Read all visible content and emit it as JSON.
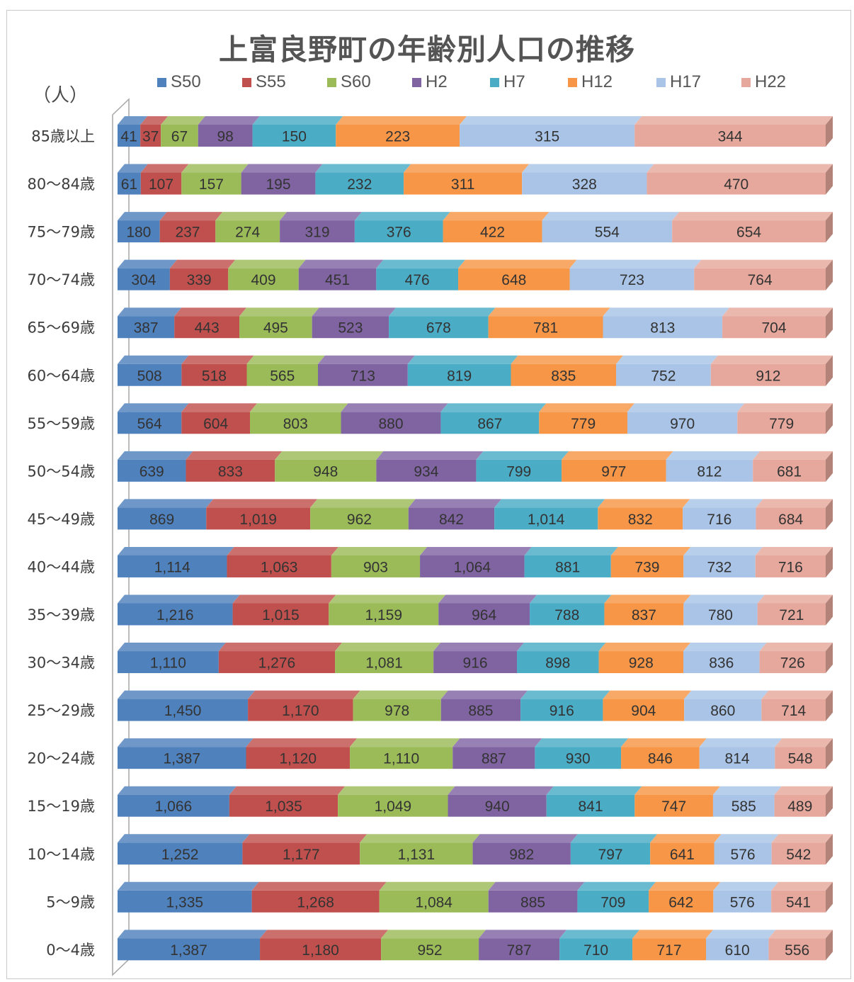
{
  "chart_data": {
    "type": "bar",
    "orientation": "horizontal",
    "stacked": true,
    "style": "3d",
    "title": "上富良野町の年齢別人口の推移",
    "unit_label": "（人）",
    "legend_position": "top",
    "categories": [
      "85歳以上",
      "80〜84歳",
      "75〜79歳",
      "70〜74歳",
      "65〜69歳",
      "60〜64歳",
      "55〜59歳",
      "50〜54歳",
      "45〜49歳",
      "40〜44歳",
      "35〜39歳",
      "30〜34歳",
      "25〜29歳",
      "20〜24歳",
      "15〜19歳",
      "10〜14歳",
      "5〜9歳",
      "0〜4歳"
    ],
    "series": [
      {
        "name": "S50",
        "color": "#4f81bd",
        "values": [
          41,
          61,
          180,
          304,
          387,
          508,
          564,
          639,
          869,
          1114,
          1216,
          1110,
          1450,
          1387,
          1066,
          1252,
          1335,
          1387
        ]
      },
      {
        "name": "S55",
        "color": "#c0504d",
        "values": [
          37,
          107,
          237,
          339,
          443,
          518,
          604,
          833,
          1019,
          1063,
          1015,
          1276,
          1170,
          1120,
          1035,
          1177,
          1268,
          1180
        ]
      },
      {
        "name": "S60",
        "color": "#9bbb59",
        "values": [
          67,
          157,
          274,
          409,
          495,
          565,
          803,
          948,
          962,
          903,
          1159,
          1081,
          978,
          1110,
          1049,
          1131,
          1084,
          952
        ]
      },
      {
        "name": "H2",
        "color": "#8064a2",
        "values": [
          98,
          195,
          319,
          451,
          523,
          713,
          880,
          934,
          842,
          1064,
          964,
          916,
          885,
          887,
          940,
          982,
          885,
          787
        ]
      },
      {
        "name": "H7",
        "color": "#4bacc6",
        "values": [
          150,
          232,
          376,
          476,
          678,
          819,
          867,
          799,
          1014,
          881,
          788,
          898,
          916,
          930,
          841,
          797,
          709,
          710
        ]
      },
      {
        "name": "H12",
        "color": "#f79646",
        "values": [
          223,
          311,
          422,
          648,
          781,
          835,
          779,
          977,
          832,
          739,
          837,
          928,
          904,
          846,
          747,
          641,
          642,
          717
        ]
      },
      {
        "name": "H17",
        "color": "#a9c4e6",
        "values": [
          315,
          328,
          554,
          723,
          813,
          752,
          970,
          812,
          716,
          732,
          780,
          836,
          860,
          814,
          585,
          576,
          576,
          610
        ]
      },
      {
        "name": "H22",
        "color": "#e6a89c",
        "values": [
          344,
          470,
          654,
          764,
          704,
          912,
          779,
          681,
          684,
          716,
          721,
          726,
          714,
          548,
          489,
          542,
          541,
          556
        ]
      }
    ]
  }
}
